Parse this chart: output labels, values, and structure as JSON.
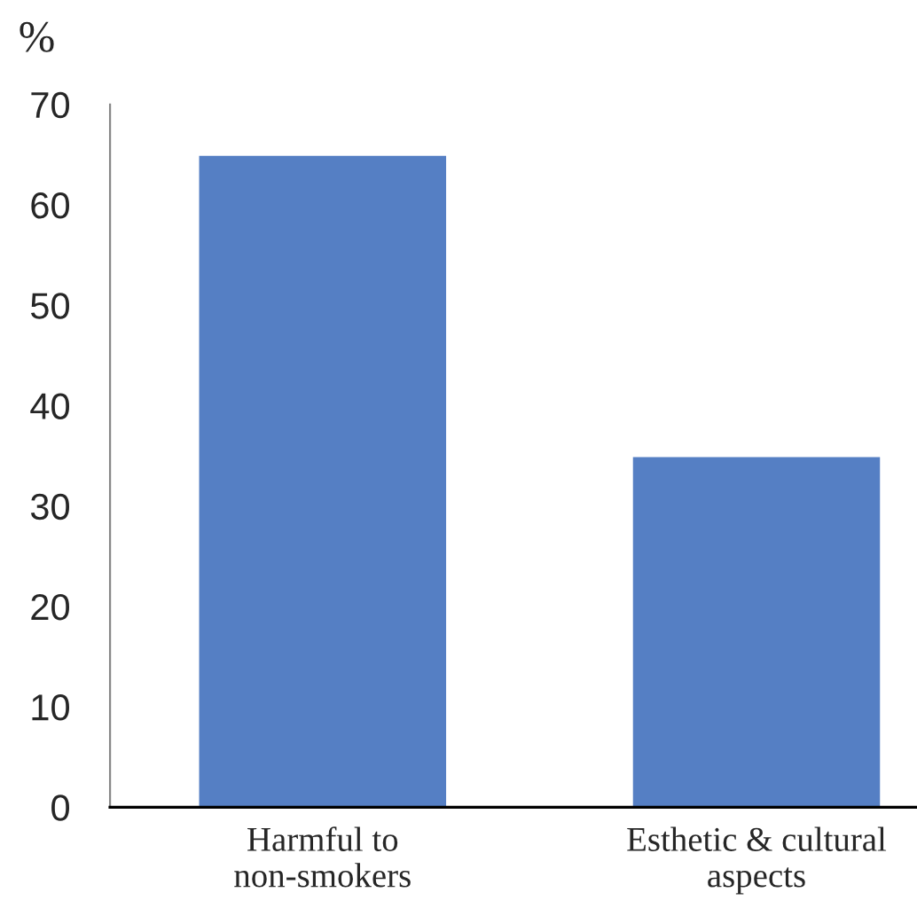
{
  "chart_data": {
    "type": "bar",
    "ylabel": "%",
    "categories": [
      "Harmful to\nnon-smokers",
      "Esthetic & cultural\naspects"
    ],
    "values": [
      65,
      35
    ],
    "color": "#557fc4",
    "ylim": [
      0,
      70
    ],
    "yticks": [
      0,
      10,
      20,
      30,
      40,
      50,
      60,
      70
    ],
    "grid": false,
    "legend": false
  }
}
